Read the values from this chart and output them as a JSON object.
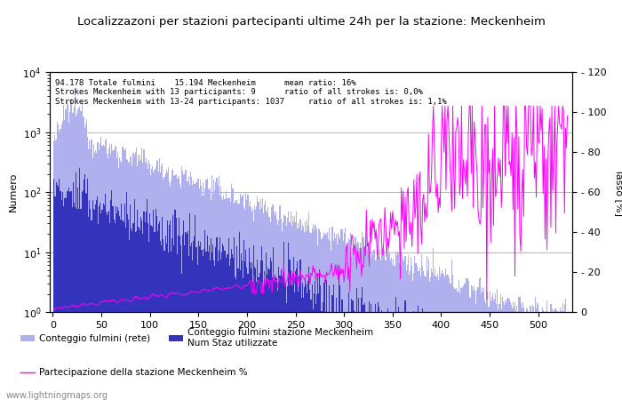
{
  "title": "Localizzazoni per stazioni partecipanti ultime 24h per la stazione: Meckenheim",
  "annotation_lines": [
    "94.178 Totale fulmini    15.194 Meckenheim      mean ratio: 16%",
    "Strokes Meckenheim with 13 participants: 9      ratio of all strokes is: 0,0%",
    "Strokes Meckenheim with 13-24 participants: 1037     ratio of all strokes is: 1,1%"
  ],
  "ylabel_left": "Numero",
  "ylabel_right": "Tasso [%]",
  "xlim": [
    -3,
    535
  ],
  "ylim_right": [
    0,
    120
  ],
  "right_yticks": [
    0,
    20,
    40,
    60,
    80,
    100,
    120
  ],
  "color_network": "#b0b0ee",
  "color_station": "#3333bb",
  "color_participation": "#ff00ff",
  "watermark": "www.lightningmaps.org",
  "legend_network": "Conteggio fulmini (rete)",
  "legend_station": "Conteggio fulmini stazione Meckenheim",
  "legend_num": "Num Staz utilizzate",
  "legend_participation": "Partecipazione della stazione Meckenheim %"
}
